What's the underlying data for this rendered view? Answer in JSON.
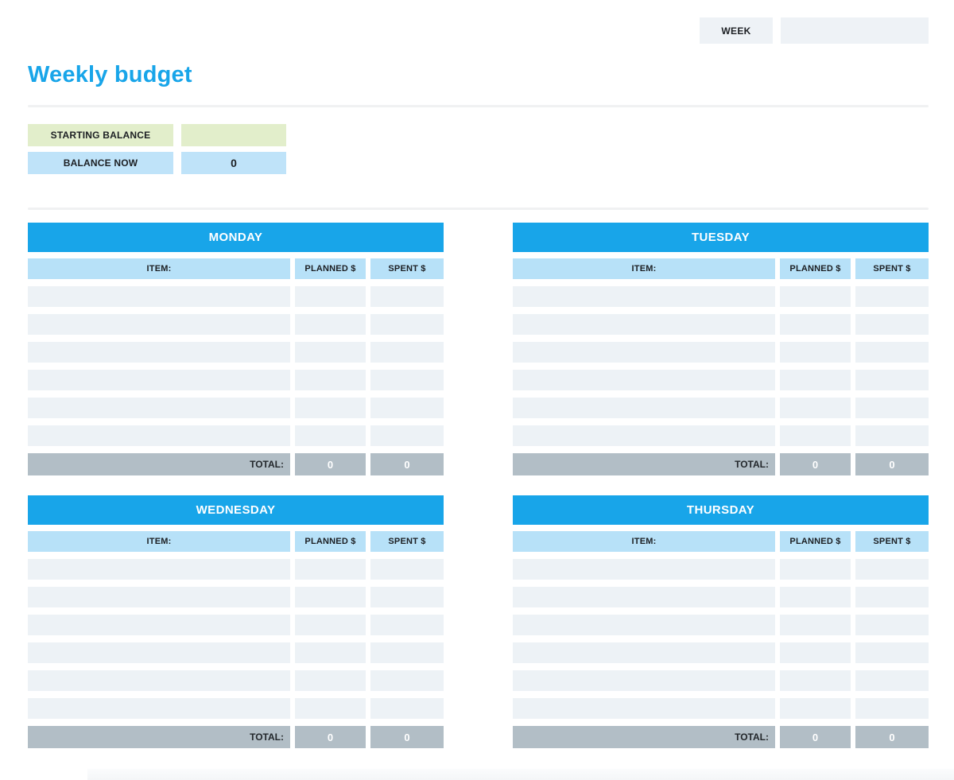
{
  "header": {
    "week_label": "WEEK",
    "week_value": ""
  },
  "page_title": "Weekly budget",
  "balance": {
    "starting_label": "STARTING BALANCE",
    "starting_value": "",
    "now_label": "BALANCE NOW",
    "now_value": "0"
  },
  "columns": {
    "item": "ITEM:",
    "planned": "PLANNED $",
    "spent": "SPENT $"
  },
  "total_label": "TOTAL:",
  "rows_per_day": 6,
  "days": [
    {
      "name": "MONDAY",
      "total_planned": "0",
      "total_spent": "0"
    },
    {
      "name": "TUESDAY",
      "total_planned": "0",
      "total_spent": "0"
    },
    {
      "name": "WEDNESDAY",
      "total_planned": "0",
      "total_spent": "0"
    },
    {
      "name": "THURSDAY",
      "total_planned": "0",
      "total_spent": "0"
    }
  ],
  "colors": {
    "accent_blue": "#18a5e9",
    "light_blue": "#b7e1f8",
    "pale_blue": "#bfe3f9",
    "light_green": "#e2eecb",
    "row_gray": "#edf2f6",
    "total_gray": "#b2bec6",
    "box_gray": "#eef2f6"
  }
}
